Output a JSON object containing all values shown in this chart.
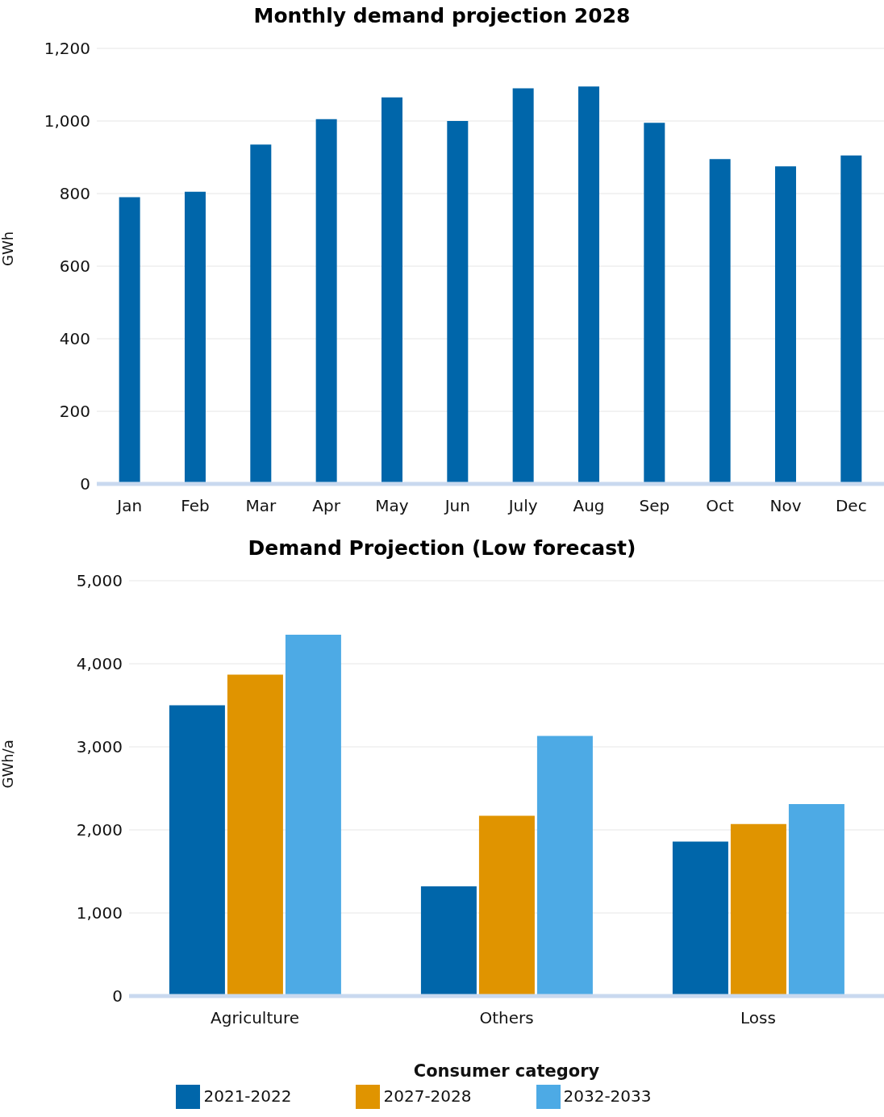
{
  "chart_data": [
    {
      "type": "bar",
      "title": "Monthly demand projection 2028",
      "ylabel": "GWh",
      "categories": [
        "Jan",
        "Feb",
        "Mar",
        "Apr",
        "May",
        "Jun",
        "July",
        "Aug",
        "Sep",
        "Oct",
        "Nov",
        "Dec"
      ],
      "series": [
        {
          "color": "#0066aa",
          "values": [
            790,
            805,
            935,
            1005,
            1065,
            1000,
            1090,
            1095,
            995,
            895,
            875,
            905
          ]
        }
      ],
      "ylim": [
        0,
        1200
      ],
      "yticks": [
        0,
        {
          "value": 200,
          "label": "200"
        },
        {
          "value": 400,
          "label": "400"
        },
        {
          "value": 600,
          "label": "600"
        },
        {
          "value": 800,
          "label": "800"
        },
        {
          "value": 1000,
          "label": "1,000"
        },
        {
          "value": 1200,
          "label": "1,200"
        }
      ],
      "grid": "y",
      "legend": false
    },
    {
      "type": "bar",
      "title": "Demand Projection (Low forecast)",
      "ylabel": "GWh/a",
      "xlabel": "Consumer category",
      "categories": [
        "Agriculture",
        "Others",
        "Loss"
      ],
      "series": [
        {
          "name": "2021-2022",
          "color": "#0066aa",
          "values": [
            3500,
            1320,
            1860
          ]
        },
        {
          "name": "2027-2028",
          "color": "#e09400",
          "values": [
            3870,
            2170,
            2070
          ]
        },
        {
          "name": "2032-2033",
          "color": "#4daae5",
          "values": [
            4350,
            3130,
            2310
          ]
        }
      ],
      "ylim": [
        0,
        5000
      ],
      "yticks": [
        0,
        {
          "value": 1000,
          "label": "1,000"
        },
        {
          "value": 2000,
          "label": "2,000"
        },
        {
          "value": 3000,
          "label": "3,000"
        },
        {
          "value": 4000,
          "label": "4,000"
        },
        {
          "value": 5000,
          "label": "5,000"
        }
      ],
      "grid": "y",
      "legend": "bottom"
    }
  ]
}
